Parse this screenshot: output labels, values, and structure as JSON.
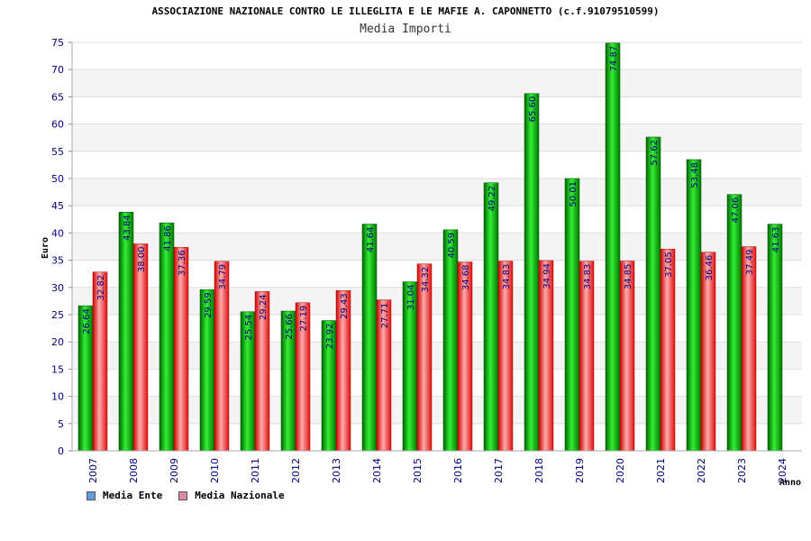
{
  "chart_data": {
    "type": "bar",
    "title": "ASSOCIAZIONE NAZIONALE CONTRO LE ILLEGLITA E LE MAFIE A. CAPONNETTO (c.f.91079510599)",
    "subtitle": "Media Importi",
    "xlabel": "Anno",
    "ylabel": "Euro",
    "ylim": [
      0,
      75
    ],
    "yticks": [
      0,
      5,
      10,
      15,
      20,
      25,
      30,
      35,
      40,
      45,
      50,
      55,
      60,
      65,
      70,
      75
    ],
    "grid": true,
    "legend_position": "bottom-left",
    "categories": [
      "2007",
      "2008",
      "2009",
      "2010",
      "2011",
      "2012",
      "2013",
      "2014",
      "2015",
      "2016",
      "2017",
      "2018",
      "2019",
      "2020",
      "2021",
      "2022",
      "2023",
      "2024"
    ],
    "series": [
      {
        "name": "Media Ente",
        "color": "#00aa00",
        "legend_color": "#6699dd",
        "values": [
          26.64,
          43.84,
          41.86,
          29.59,
          25.54,
          25.66,
          23.92,
          41.64,
          31.04,
          40.59,
          49.22,
          65.6,
          50.01,
          74.87,
          57.62,
          53.48,
          47.06,
          41.63
        ],
        "labels": [
          "26.64",
          "43.84",
          "41.86",
          "29.59",
          "25.54",
          "25.66",
          "23.92",
          "41.64",
          "31.04",
          "40.59",
          "49.22",
          "65.60",
          "50.01",
          "74.87",
          "57.62",
          "53.48",
          "47.06",
          "41.63"
        ]
      },
      {
        "name": "Media Nazionale",
        "color": "#ee2222",
        "legend_color": "#dd88aa",
        "values": [
          32.82,
          38.0,
          37.36,
          34.79,
          29.24,
          27.19,
          29.43,
          27.71,
          34.32,
          34.68,
          34.83,
          34.94,
          34.83,
          34.85,
          37.05,
          36.46,
          37.49,
          null
        ],
        "labels": [
          "32.82",
          "38.00",
          "37.36",
          "34.79",
          "29.24",
          "27.19",
          "29.43",
          "27.71",
          "34.32",
          "34.68",
          "34.83",
          "34.94",
          "34.83",
          "34.85",
          "37.05",
          "36.46",
          "37.49",
          null
        ]
      }
    ]
  }
}
